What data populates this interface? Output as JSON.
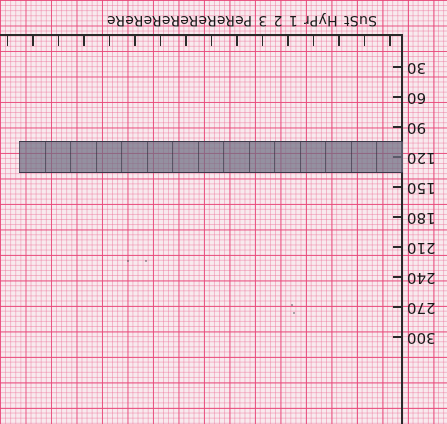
{
  "header": {
    "labels": [
      "SuSt",
      "HyPr",
      "1",
      "2",
      "3",
      "PeReReReReReReRe"
    ]
  },
  "axis": {
    "labels": [
      "30",
      "60",
      "90",
      "120",
      "150",
      "180",
      "210",
      "240",
      "270",
      "300"
    ],
    "range": [
      30,
      300
    ]
  },
  "band": {
    "from": 105,
    "to": 135
  },
  "colors": {
    "grid_major": "#e84678",
    "grid_minor": "#ec6e96",
    "paper": "#f8eaee",
    "band": "#6e6e82"
  }
}
